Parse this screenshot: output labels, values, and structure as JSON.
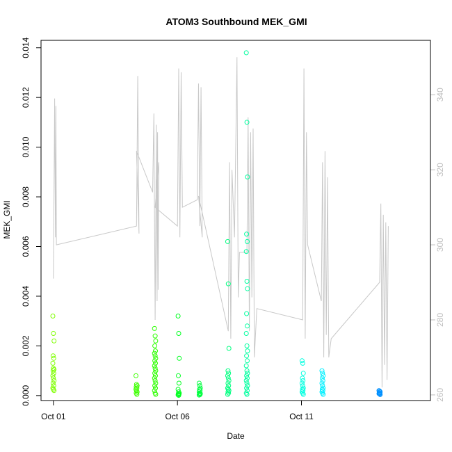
{
  "chart_data": {
    "type": "scatter",
    "title": "ATOM3 Southbound MEK_GMI",
    "xlabel": "Date",
    "ylabel": "MEK_GMI",
    "x_unit": "day of October",
    "xlim": [
      0.5,
      16.2
    ],
    "ylim": [
      -0.0002,
      0.0143
    ],
    "x_ticks": [
      {
        "value": 1,
        "label": "Oct 01"
      },
      {
        "value": 6,
        "label": "Oct 06"
      },
      {
        "value": 11,
        "label": "Oct 11"
      }
    ],
    "y_ticks": [
      0.0,
      0.002,
      0.004,
      0.006,
      0.008,
      0.01,
      0.012,
      0.014
    ],
    "y_tick_labels": [
      "0.000",
      "0.002",
      "0.004",
      "0.006",
      "0.008",
      "0.010",
      "0.012",
      "0.014"
    ],
    "y2_ticks": [
      260,
      280,
      300,
      320,
      340
    ],
    "y2lim": [
      258.5,
      354.5
    ],
    "grid": false,
    "legend": "none",
    "series": [
      {
        "type": "scatter",
        "marker": "open-circle",
        "color_scale": "by time (yellow-green to blue)",
        "groups": [
          {
            "x": 1.0,
            "color": "#7FFF00",
            "values": [
              0.0032,
              0.0025,
              0.0022,
              0.0016,
              0.0015,
              0.0013,
              0.0011,
              0.00105,
              0.001,
              0.0009,
              0.0008,
              0.0007,
              0.0006,
              0.0005,
              0.0004,
              0.0003,
              0.00025,
              0.0002
            ]
          },
          {
            "x": 4.35,
            "color": "#3DFF00",
            "values": [
              0.0008,
              0.00045,
              0.0004,
              0.00035,
              0.0003,
              0.00025,
              0.0002,
              0.00015,
              0.0001,
              5e-05
            ]
          },
          {
            "x": 5.1,
            "color": "#2DFF00",
            "values": [
              0.0027,
              0.0024,
              0.0022,
              0.002,
              0.0018,
              0.0017,
              0.0016,
              0.0015,
              0.0014,
              0.0013,
              0.0012,
              0.0011,
              0.001,
              0.0009,
              0.0008,
              0.0007,
              0.0006,
              0.0005,
              0.0004,
              0.0003,
              0.0002,
              0.0001,
              5e-05
            ]
          },
          {
            "x": 6.05,
            "color": "#00FF20",
            "values": [
              0.0032,
              0.0025,
              0.0015,
              0.0008,
              0.0005,
              0.00025,
              0.00015,
              0.0001,
              8e-05,
              5e-05,
              3e-05,
              1e-05
            ]
          },
          {
            "x": 6.9,
            "color": "#00FF40",
            "values": [
              0.0005,
              0.0004,
              0.0003,
              0.00025,
              0.0002,
              0.00015,
              0.0001,
              8e-05,
              6e-05,
              4e-05,
              2e-05
            ]
          },
          {
            "x": 8.05,
            "color": "#00FF80",
            "values": [
              0.0062,
              0.0045,
              0.0019,
              0.001,
              0.0009,
              0.0008,
              0.0007,
              0.0006,
              0.0005,
              0.0004,
              0.0003,
              0.00025,
              0.0002,
              0.00015,
              0.0001,
              5e-05
            ]
          },
          {
            "x": 8.8,
            "color": "#00FFA0",
            "values": [
              0.0138,
              0.011,
              0.0088,
              0.0065,
              0.0062,
              0.0058,
              0.0046,
              0.0043,
              0.0033,
              0.0028,
              0.0025,
              0.002,
              0.0018,
              0.0016,
              0.0014,
              0.0012,
              0.001,
              0.0009,
              0.0008,
              0.0007,
              0.0006,
              0.0005,
              0.0004,
              0.0003,
              0.0002,
              0.0001,
              5e-05
            ]
          },
          {
            "x": 11.05,
            "color": "#00FFE0",
            "values": [
              0.0014,
              0.0013,
              0.0009,
              0.0007,
              0.0006,
              0.0005,
              0.0004,
              0.0003,
              0.00025,
              0.0002,
              0.00015,
              0.0001,
              5e-05
            ]
          },
          {
            "x": 11.85,
            "color": "#00F0FF",
            "values": [
              0.001,
              0.0009,
              0.0008,
              0.0007,
              0.0006,
              0.0005,
              0.0004,
              0.0003,
              0.00025,
              0.0002,
              0.00015,
              0.0001,
              5e-05
            ]
          },
          {
            "x": 14.15,
            "color": "#0090FF",
            "values": [
              0.0002,
              0.00018,
              0.00015,
              0.00012,
              0.0001,
              8e-05,
              6e-05,
              4e-05
            ]
          }
        ]
      },
      {
        "type": "line",
        "axis": "right",
        "color": "#c8c8c8",
        "points": [
          [
            1.0,
            291
          ],
          [
            1.05,
            339
          ],
          [
            1.08,
            302
          ],
          [
            1.1,
            337
          ],
          [
            1.12,
            300
          ],
          [
            4.35,
            305
          ],
          [
            4.4,
            345
          ],
          [
            4.45,
            303
          ],
          [
            4.35,
            325
          ],
          [
            5.0,
            314
          ],
          [
            5.05,
            335
          ],
          [
            5.1,
            280
          ],
          [
            5.15,
            332
          ],
          [
            5.18,
            285
          ],
          [
            5.2,
            330
          ],
          [
            5.22,
            288
          ],
          [
            5.25,
            322
          ],
          [
            5.1,
            310
          ],
          [
            6.0,
            305
          ],
          [
            6.05,
            347
          ],
          [
            6.1,
            302
          ],
          [
            6.15,
            346
          ],
          [
            6.2,
            310
          ],
          [
            6.8,
            312
          ],
          [
            6.85,
            343
          ],
          [
            6.9,
            305
          ],
          [
            6.95,
            342
          ],
          [
            7.0,
            302
          ],
          [
            6.85,
            313
          ],
          [
            8.05,
            277
          ],
          [
            8.1,
            322
          ],
          [
            8.15,
            275
          ],
          [
            8.2,
            320
          ],
          [
            8.3,
            302
          ],
          [
            8.4,
            350
          ],
          [
            8.45,
            286
          ],
          [
            8.5,
            298
          ],
          [
            8.8,
            298
          ],
          [
            8.85,
            334
          ],
          [
            8.9,
            277
          ],
          [
            8.95,
            330
          ],
          [
            9.0,
            286
          ],
          [
            9.05,
            331
          ],
          [
            9.1,
            270
          ],
          [
            9.2,
            283
          ],
          [
            11.05,
            280
          ],
          [
            11.1,
            347
          ],
          [
            11.15,
            275
          ],
          [
            11.2,
            330
          ],
          [
            11.25,
            300
          ],
          [
            11.8,
            285
          ],
          [
            11.85,
            322
          ],
          [
            11.9,
            270
          ],
          [
            11.95,
            325
          ],
          [
            12.0,
            276
          ],
          [
            12.05,
            318
          ],
          [
            12.1,
            270
          ],
          [
            12.2,
            275
          ],
          [
            14.15,
            290
          ],
          [
            14.2,
            311
          ],
          [
            14.25,
            262
          ],
          [
            14.3,
            308
          ],
          [
            14.35,
            268
          ],
          [
            14.4,
            306
          ],
          [
            14.45,
            264
          ],
          [
            14.5,
            305
          ]
        ]
      }
    ]
  }
}
